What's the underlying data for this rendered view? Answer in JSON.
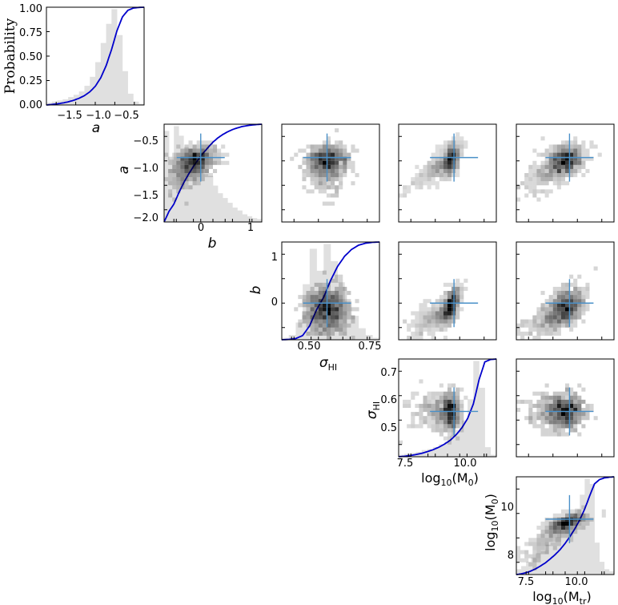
{
  "chart_data": {
    "type": "corner-plot",
    "parameters": [
      "a",
      "b",
      "σ_HI",
      "log10(M0)",
      "log10(Mtr)"
    ],
    "best_fit": {
      "a": -0.93,
      "b": 0.0,
      "sigma_HI": 0.56,
      "logM0": 9.75,
      "logMtr": 9.65
    },
    "colors": {
      "cdf_line": "#0000cc",
      "hist_fill": "#e0e0e0",
      "marker": "#4a90c8",
      "hex": "#000000"
    },
    "probability_label": "Probability",
    "prob_ticks": [
      "0.00",
      "0.25",
      "0.50",
      "0.75",
      "1.00"
    ],
    "labels": {
      "a": "a",
      "b": "b",
      "sigma_main": "σ",
      "sigma_sub": "HI",
      "logM0_main": "log",
      "logM0_sub": "10",
      "logM0_rest": "(M",
      "logM0_sub2": "0",
      "logM0_end": ")",
      "logMtr_main": "log",
      "logMtr_sub": "10",
      "logMtr_rest": "(M",
      "logMtr_sub2": "tr",
      "logMtr_end": ")"
    },
    "ticks": {
      "a_x": [
        "−1.5",
        "−1.0",
        "−0.5"
      ],
      "a_y": [
        "−0.5",
        "−1.0",
        "−1.5",
        "−2.0"
      ],
      "b_x": [
        "0",
        "1"
      ],
      "b_y": [
        "1",
        "0"
      ],
      "sigma_x": [
        "0.50",
        "0.75"
      ],
      "sigma_y": [
        "0.7",
        "0.6",
        "0.5"
      ],
      "m0_x": [
        "7.5",
        "10.0"
      ],
      "m0_y": [
        "10",
        "8"
      ],
      "mtr_x": [
        "7.5",
        "10.0"
      ]
    },
    "ranges": {
      "a": [
        -2.05,
        -0.35
      ],
      "b": [
        -0.75,
        1.25
      ],
      "sigma_HI": [
        0.37,
        0.78
      ],
      "logM0": [
        7.2,
        11.7
      ],
      "logMtr": [
        7.2,
        11.7
      ]
    },
    "histograms": [
      {
        "param": "a",
        "values": [
          0.02,
          0.03,
          0.04,
          0.05,
          0.07,
          0.09,
          0.12,
          0.17,
          0.25,
          0.38,
          0.55,
          0.72,
          0.85,
          0.62,
          0.3,
          0.1,
          0.03,
          0.01
        ]
      },
      {
        "param": "b",
        "values": [
          0.95,
          0.65,
          1.0,
          0.9,
          0.78,
          0.7,
          0.62,
          0.58,
          0.5,
          0.48,
          0.38,
          0.3,
          0.25,
          0.2,
          0.15,
          0.12,
          0.08,
          0.06,
          0.04,
          0.03
        ]
      },
      {
        "param": "sigma_HI",
        "values": [
          0.02,
          0.05,
          0.18,
          0.58,
          0.95,
          0.72,
          1.0,
          0.82,
          0.6,
          0.4,
          0.25,
          0.12,
          0.05,
          0.02
        ]
      },
      {
        "param": "logM0",
        "values": [
          0.02,
          0.03,
          0.04,
          0.05,
          0.07,
          0.08,
          0.1,
          0.13,
          0.16,
          0.22,
          0.28,
          0.38,
          0.6,
          1.0,
          0.72,
          0.1,
          0.02
        ]
      },
      {
        "param": "logMtr",
        "values": [
          0.05,
          0.08,
          0.12,
          0.16,
          0.2,
          0.22,
          0.28,
          0.3,
          0.35,
          0.42,
          0.48,
          0.55,
          0.62,
          0.75,
          0.9,
          0.85,
          0.3,
          0.12,
          0.05,
          0.03
        ]
      }
    ]
  }
}
